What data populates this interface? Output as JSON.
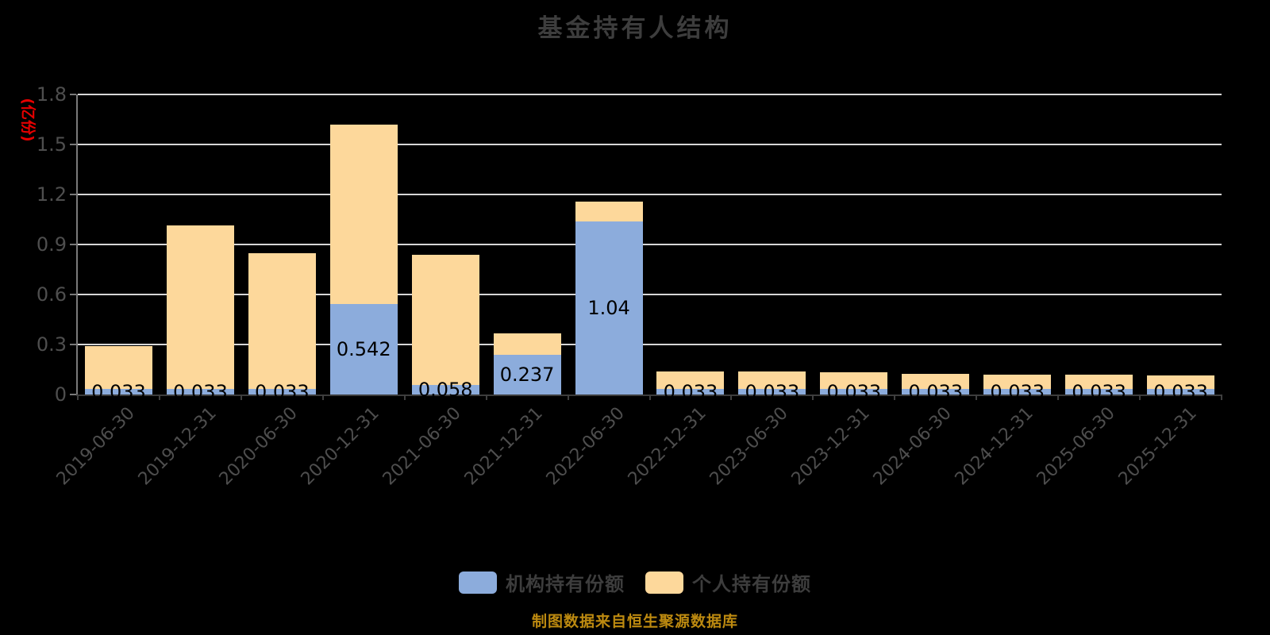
{
  "title": "基金持有人结构",
  "y_axis_unit": "(亿份)",
  "footer_note": "制图数据来自恒生聚源数据库",
  "colors": {
    "background": "#000000",
    "institutional_bar": "#8cacdc",
    "individual_bar": "#fdd89b",
    "gridline": "#d6d6d6",
    "axis_line": "#7a7a7a",
    "baseline": "#3c3c3c",
    "title_text": "#3d3d3d",
    "axis_text": "#4e4e4e",
    "unit_text": "#e60000",
    "footer_text": "#bd8a10",
    "bar_label_text": "#000000"
  },
  "chart_data": {
    "type": "bar",
    "stacked": true,
    "title": "基金持有人结构",
    "ylabel": "(亿份)",
    "ylim": [
      0,
      1.8
    ],
    "yticks": [
      0,
      0.3,
      0.6,
      0.9,
      1.2,
      1.5,
      1.8
    ],
    "grid": true,
    "legend_position": "bottom",
    "categories": [
      "2019-06-30",
      "2019-12-31",
      "2020-06-30",
      "2020-12-31",
      "2021-06-30",
      "2021-12-31",
      "2022-06-30",
      "2022-12-31",
      "2023-06-30",
      "2023-12-31",
      "2024-06-30",
      "2024-12-31",
      "2025-06-30",
      "2025-12-31"
    ],
    "series": [
      {
        "name": "机构持有份额",
        "color": "#8cacdc",
        "values": [
          0.033,
          0.033,
          0.033,
          0.542,
          0.058,
          0.237,
          1.04,
          0.033,
          0.033,
          0.033,
          0.033,
          0.033,
          0.033,
          0.033
        ],
        "labels": [
          "0.033",
          "0.033",
          "0.033",
          "0.542",
          "0.058",
          "0.237",
          "1.04",
          "0.033",
          "0.033",
          "0.033",
          "0.033",
          "0.033",
          "0.033",
          "0.033"
        ]
      },
      {
        "name": "个人持有份额",
        "color": "#fdd89b",
        "values": [
          0.257,
          0.982,
          0.815,
          1.078,
          0.78,
          0.13,
          0.117,
          0.105,
          0.105,
          0.1,
          0.091,
          0.086,
          0.086,
          0.081
        ]
      }
    ]
  },
  "legend": {
    "items": [
      {
        "label": "机构持有份额",
        "color": "#8cacdc"
      },
      {
        "label": "个人持有份额",
        "color": "#fdd89b"
      }
    ]
  }
}
